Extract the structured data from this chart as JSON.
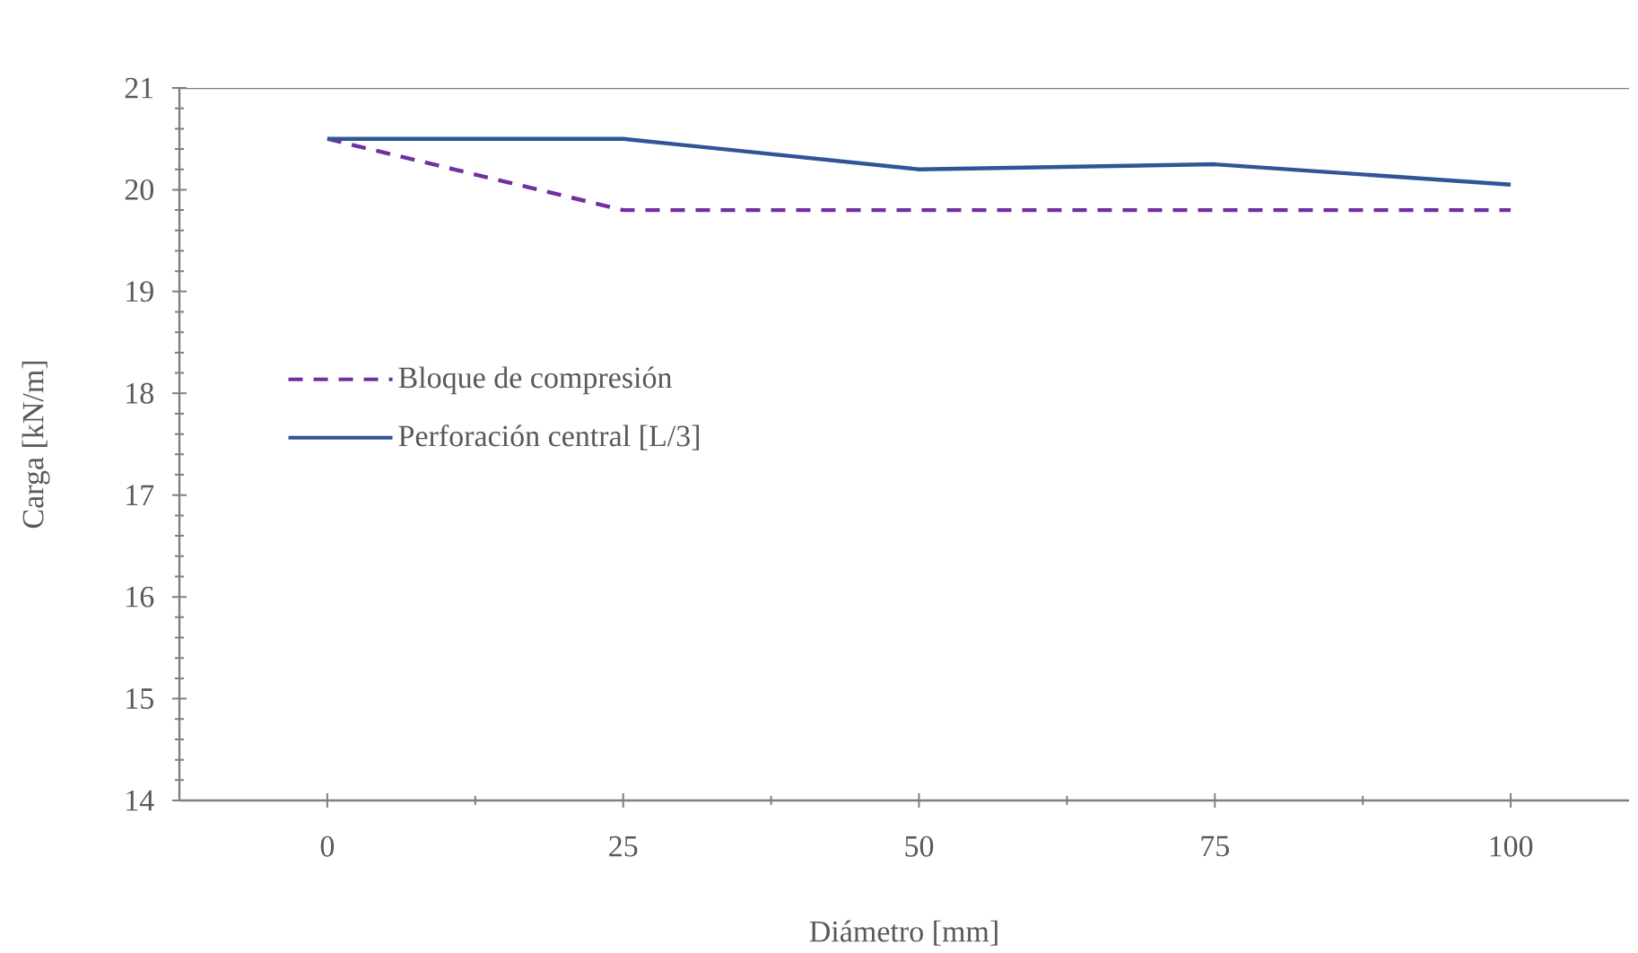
{
  "chart_data": {
    "type": "line",
    "xlabel": "Diámetro [mm]",
    "ylabel": "Carga [kN/m]",
    "x": [
      0,
      25,
      50,
      75,
      100
    ],
    "series": [
      {
        "name": "Bloque de compresión",
        "color": "#7030a0",
        "line_style": "dashed",
        "values": [
          20.5,
          19.8,
          19.8,
          19.8,
          19.8
        ]
      },
      {
        "name": "Perforación central [L/3]",
        "color": "#2f5597",
        "line_style": "solid",
        "values": [
          20.5,
          20.5,
          20.2,
          20.25,
          20.05
        ]
      }
    ],
    "xlim": [
      -12.5,
      110
    ],
    "xticks": [
      0,
      25,
      50,
      75,
      100
    ],
    "ylim": [
      14,
      21
    ],
    "yticks": [
      14,
      15,
      16,
      17,
      18,
      19,
      20,
      21
    ],
    "grid": false,
    "legend": "left",
    "marker": "none"
  }
}
